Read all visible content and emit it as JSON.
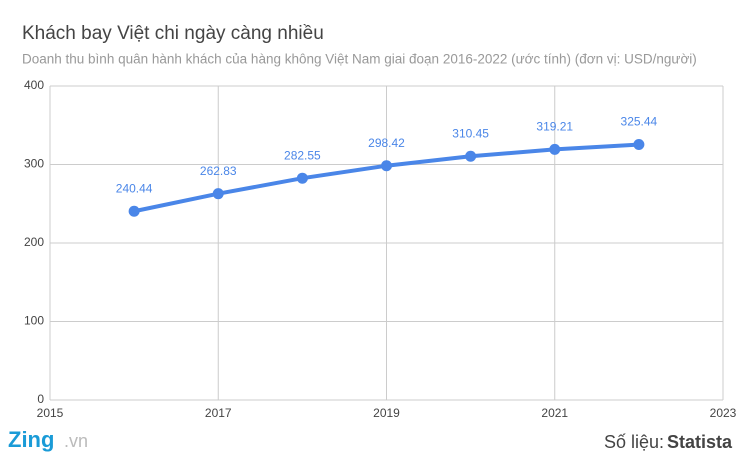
{
  "chart_data": {
    "type": "line",
    "title": "Khách bay Việt chi ngày càng nhiều",
    "subtitle": "Doanh thu bình quân hành khách của hàng không Việt Nam giai đoạn 2016-2022 (ước tính) (đơn vị: USD/người)",
    "x": [
      2016,
      2017,
      2018,
      2019,
      2020,
      2021,
      2022
    ],
    "series": [
      {
        "name": "Doanh thu bình quân hành khách",
        "color": "#4a86e8",
        "values": [
          240.44,
          262.83,
          282.55,
          298.42,
          310.45,
          319.21,
          325.44
        ]
      }
    ],
    "xlim": [
      2015,
      2023
    ],
    "xticks": [
      2015,
      2017,
      2019,
      2021,
      2023
    ],
    "ylim": [
      0,
      400
    ],
    "yticks": [
      0,
      100,
      200,
      300,
      400
    ],
    "grid": true,
    "data_labels": true
  },
  "footer": {
    "logo_main": "Zing",
    "logo_suffix": ".vn",
    "source_label": "Số liệu:",
    "source_name": "Statista"
  }
}
